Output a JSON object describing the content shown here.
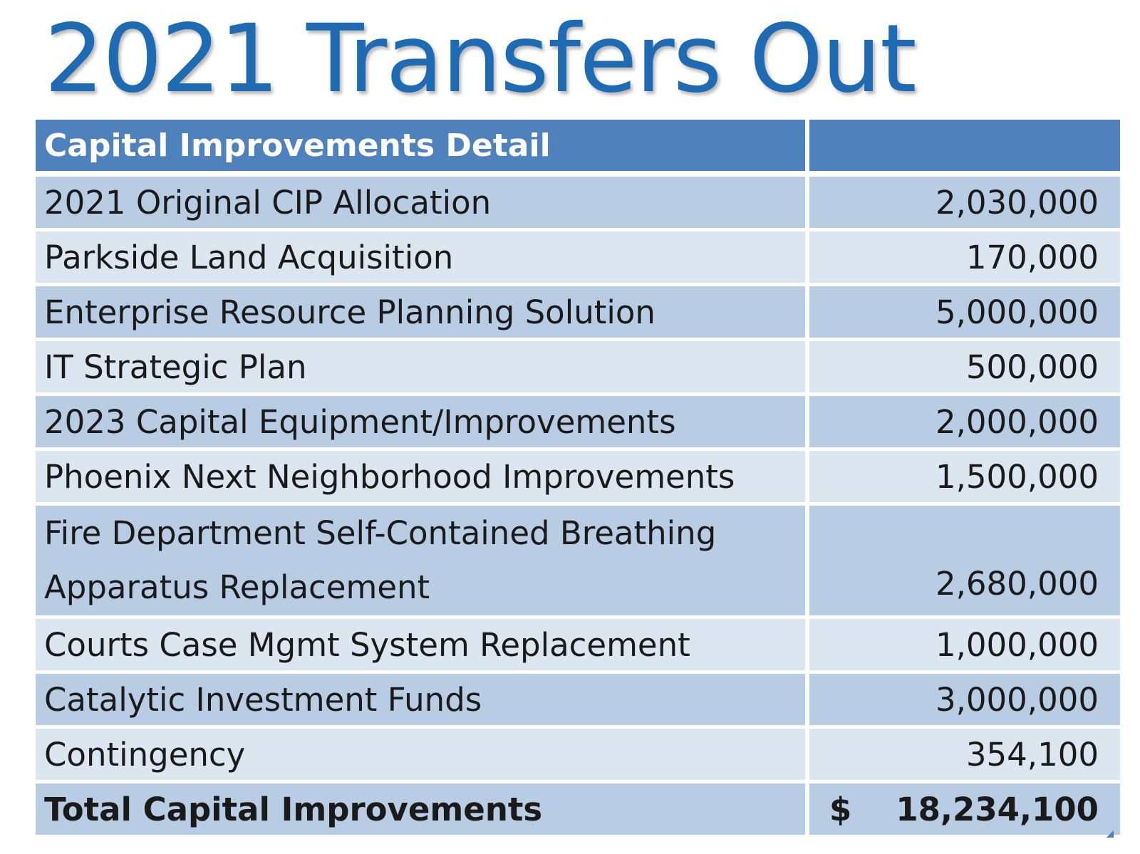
{
  "slide": {
    "title": "2021 Transfers Out"
  },
  "table": {
    "header": {
      "label": "Capital Improvements Detail",
      "amount": ""
    },
    "rows": [
      {
        "label": "2021 Original CIP Allocation",
        "amount": "2,030,000"
      },
      {
        "label": "Parkside Land Acquisition",
        "amount": "170,000"
      },
      {
        "label": "Enterprise Resource Planning Solution",
        "amount": "5,000,000"
      },
      {
        "label": "IT Strategic Plan",
        "amount": "500,000"
      },
      {
        "label": "2023 Capital Equipment/Improvements",
        "amount": "2,000,000"
      },
      {
        "label": "Phoenix Next Neighborhood Improvements",
        "amount": "1,500,000"
      },
      {
        "label": "Fire Department Self-Contained Breathing Apparatus Replacement",
        "amount": "2,680,000"
      },
      {
        "label": "Courts Case Mgmt System Replacement",
        "amount": "1,000,000"
      },
      {
        "label": "Catalytic Investment Funds",
        "amount": "3,000,000"
      },
      {
        "label": "Contingency",
        "amount": "354,100"
      }
    ],
    "total": {
      "label": "Total Capital Improvements",
      "currency": "$",
      "amount": "18,234,100"
    }
  },
  "colors": {
    "title": "#1f6bb3",
    "header_bg": "#4f81bd",
    "row_dark": "#b8cce4",
    "row_light": "#dce6f1"
  }
}
